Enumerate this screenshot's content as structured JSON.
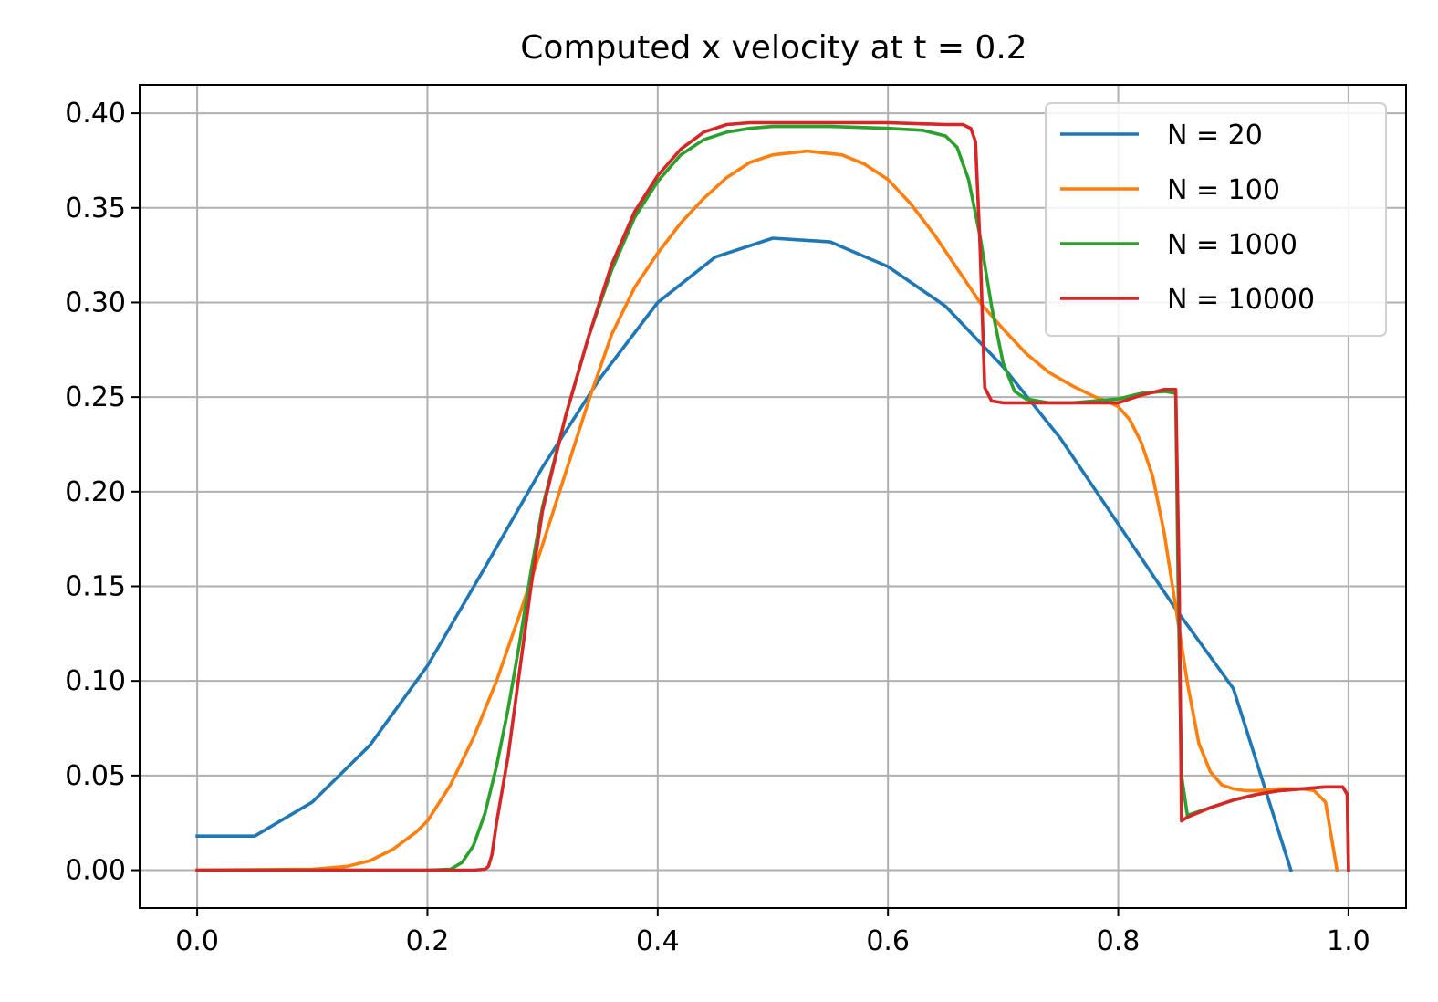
{
  "chart_data": {
    "type": "line",
    "title": "Computed x velocity at t = 0.2",
    "xlabel": "",
    "ylabel": "",
    "xlim": [
      -0.05,
      1.05
    ],
    "ylim": [
      -0.02,
      0.415
    ],
    "x_ticks": [
      0.0,
      0.2,
      0.4,
      0.6,
      0.8,
      1.0
    ],
    "x_tick_labels": [
      "0.0",
      "0.2",
      "0.4",
      "0.6",
      "0.8",
      "1.0"
    ],
    "y_ticks": [
      0.0,
      0.05,
      0.1,
      0.15,
      0.2,
      0.25,
      0.3,
      0.35,
      0.4
    ],
    "y_tick_labels": [
      "0.00",
      "0.05",
      "0.10",
      "0.15",
      "0.20",
      "0.25",
      "0.30",
      "0.35",
      "0.40"
    ],
    "grid": true,
    "legend_position": "top-right",
    "series": [
      {
        "name": "N = 20",
        "color": "#1f77b4",
        "x": [
          0.0,
          0.05,
          0.1,
          0.15,
          0.2,
          0.25,
          0.3,
          0.35,
          0.4,
          0.45,
          0.5,
          0.55,
          0.6,
          0.65,
          0.7,
          0.75,
          0.8,
          0.85,
          0.9,
          0.95
        ],
        "y": [
          0.018,
          0.018,
          0.036,
          0.066,
          0.108,
          0.16,
          0.213,
          0.26,
          0.3,
          0.324,
          0.334,
          0.332,
          0.319,
          0.298,
          0.266,
          0.228,
          0.183,
          0.138,
          0.096,
          0.0
        ]
      },
      {
        "name": "N = 100",
        "color": "#ff7f0e",
        "x": [
          0.0,
          0.1,
          0.13,
          0.15,
          0.17,
          0.19,
          0.2,
          0.22,
          0.24,
          0.26,
          0.28,
          0.3,
          0.32,
          0.34,
          0.36,
          0.38,
          0.4,
          0.42,
          0.44,
          0.46,
          0.48,
          0.5,
          0.53,
          0.56,
          0.58,
          0.6,
          0.62,
          0.64,
          0.66,
          0.68,
          0.7,
          0.72,
          0.74,
          0.76,
          0.78,
          0.79,
          0.8,
          0.81,
          0.82,
          0.83,
          0.84,
          0.85,
          0.86,
          0.87,
          0.88,
          0.89,
          0.9,
          0.91,
          0.92,
          0.94,
          0.96,
          0.97,
          0.98,
          0.99
        ],
        "y": [
          0.0,
          0.0005,
          0.002,
          0.005,
          0.011,
          0.02,
          0.026,
          0.045,
          0.07,
          0.1,
          0.135,
          0.172,
          0.21,
          0.248,
          0.283,
          0.308,
          0.326,
          0.342,
          0.355,
          0.366,
          0.374,
          0.378,
          0.38,
          0.378,
          0.373,
          0.365,
          0.352,
          0.336,
          0.318,
          0.3,
          0.286,
          0.273,
          0.263,
          0.256,
          0.25,
          0.248,
          0.245,
          0.238,
          0.226,
          0.208,
          0.178,
          0.139,
          0.099,
          0.067,
          0.052,
          0.045,
          0.043,
          0.042,
          0.042,
          0.043,
          0.043,
          0.042,
          0.036,
          0.0
        ]
      },
      {
        "name": "N = 1000",
        "color": "#2ca02c",
        "x": [
          0.0,
          0.2,
          0.22,
          0.23,
          0.24,
          0.25,
          0.26,
          0.27,
          0.28,
          0.29,
          0.3,
          0.32,
          0.34,
          0.36,
          0.38,
          0.4,
          0.42,
          0.44,
          0.46,
          0.48,
          0.5,
          0.55,
          0.6,
          0.63,
          0.65,
          0.66,
          0.67,
          0.68,
          0.69,
          0.7,
          0.71,
          0.72,
          0.74,
          0.76,
          0.8,
          0.82,
          0.84,
          0.85,
          0.852,
          0.855,
          0.86,
          0.88,
          0.9,
          0.92,
          0.94,
          0.96,
          0.98,
          0.995,
          0.999,
          1.0
        ],
        "y": [
          0.0,
          0.0,
          0.0005,
          0.004,
          0.013,
          0.03,
          0.055,
          0.085,
          0.12,
          0.158,
          0.192,
          0.24,
          0.282,
          0.317,
          0.345,
          0.364,
          0.378,
          0.386,
          0.39,
          0.392,
          0.393,
          0.393,
          0.392,
          0.391,
          0.388,
          0.382,
          0.365,
          0.335,
          0.298,
          0.268,
          0.253,
          0.249,
          0.247,
          0.247,
          0.249,
          0.252,
          0.253,
          0.252,
          0.15,
          0.05,
          0.029,
          0.033,
          0.037,
          0.04,
          0.042,
          0.043,
          0.044,
          0.044,
          0.04,
          0.0
        ]
      },
      {
        "name": "N = 10000",
        "color": "#d62728",
        "x": [
          0.0,
          0.24,
          0.25,
          0.253,
          0.256,
          0.26,
          0.27,
          0.28,
          0.29,
          0.3,
          0.32,
          0.34,
          0.36,
          0.38,
          0.4,
          0.42,
          0.44,
          0.46,
          0.48,
          0.5,
          0.55,
          0.6,
          0.65,
          0.665,
          0.672,
          0.676,
          0.68,
          0.684,
          0.69,
          0.7,
          0.72,
          0.75,
          0.8,
          0.82,
          0.84,
          0.85,
          0.853,
          0.855,
          0.86,
          0.88,
          0.9,
          0.92,
          0.94,
          0.96,
          0.98,
          0.995,
          0.999,
          1.0
        ],
        "y": [
          0.0,
          0.0,
          0.0005,
          0.002,
          0.008,
          0.025,
          0.06,
          0.105,
          0.15,
          0.19,
          0.24,
          0.282,
          0.32,
          0.348,
          0.367,
          0.381,
          0.39,
          0.394,
          0.395,
          0.395,
          0.395,
          0.395,
          0.394,
          0.394,
          0.392,
          0.385,
          0.33,
          0.255,
          0.248,
          0.247,
          0.247,
          0.247,
          0.247,
          0.251,
          0.254,
          0.254,
          0.15,
          0.026,
          0.028,
          0.033,
          0.037,
          0.04,
          0.042,
          0.043,
          0.044,
          0.044,
          0.04,
          0.0
        ]
      }
    ]
  }
}
